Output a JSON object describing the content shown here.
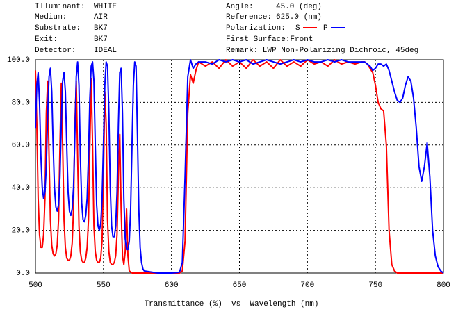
{
  "chart_data": {
    "type": "line",
    "header_left": [
      {
        "label": "Illuminant:",
        "value": "WHITE"
      },
      {
        "label": "Medium:",
        "value": "AIR"
      },
      {
        "label": "Substrate:",
        "value": "BK7"
      },
      {
        "label": "Exit:",
        "value": "BK7"
      },
      {
        "label": "Detector:",
        "value": "IDEAL"
      }
    ],
    "header_right": [
      {
        "label": "Angle:",
        "value": "45.0 (deg)"
      },
      {
        "label": "Reference:",
        "value": "625.0 (nm)"
      }
    ],
    "polarization_label": "Polarization:",
    "first_surface": "First Surface:Front",
    "remark": "Remark: LWP Non-Polarizing Dichroic, 45deg",
    "xlabel": "Transmittance (%)  vs  Wavelength (nm)",
    "xlim": [
      500,
      800
    ],
    "ylim": [
      0,
      100
    ],
    "xticks": [
      500,
      550,
      600,
      650,
      700,
      750,
      800
    ],
    "yticks": [
      {
        "value": 0,
        "label": "0.0"
      },
      {
        "value": 20,
        "label": "20.0"
      },
      {
        "value": 40,
        "label": "40.0"
      },
      {
        "value": 60,
        "label": "60.0"
      },
      {
        "value": 80,
        "label": "80.0"
      },
      {
        "value": 100,
        "label": "100.0"
      }
    ],
    "grid": true,
    "x": [
      500,
      501,
      502,
      503,
      504,
      505,
      506,
      507,
      508,
      509,
      510,
      511,
      512,
      513,
      514,
      515,
      516,
      517,
      518,
      519,
      520,
      521,
      522,
      523,
      524,
      525,
      526,
      527,
      528,
      529,
      530,
      531,
      532,
      533,
      534,
      535,
      536,
      537,
      538,
      539,
      540,
      541,
      542,
      543,
      544,
      545,
      546,
      547,
      548,
      549,
      550,
      551,
      552,
      553,
      554,
      555,
      556,
      557,
      558,
      559,
      560,
      561,
      562,
      563,
      564,
      565,
      566,
      567,
      568,
      569,
      570,
      571,
      572,
      573,
      574,
      575,
      576,
      577,
      578,
      579,
      580,
      585,
      590,
      595,
      600,
      605,
      606,
      608,
      610,
      612,
      614,
      616,
      618,
      620,
      625,
      630,
      635,
      640,
      645,
      650,
      655,
      660,
      665,
      670,
      675,
      680,
      685,
      690,
      695,
      700,
      705,
      710,
      715,
      720,
      725,
      730,
      735,
      740,
      742,
      744,
      746,
      748,
      750,
      752,
      754,
      756,
      758,
      760,
      762,
      764,
      766,
      768,
      770,
      772,
      774,
      776,
      778,
      780,
      782,
      784,
      786,
      788,
      790,
      792,
      794,
      796,
      798,
      800
    ],
    "series": [
      {
        "name": "S",
        "color": "#ff0000",
        "values": [
          95,
          70,
          35,
          18,
          12,
          12,
          18,
          35,
          75,
          90,
          55,
          25,
          13,
          9,
          8,
          9,
          13,
          25,
          60,
          89,
          60,
          25,
          12,
          7,
          6,
          6,
          8,
          14,
          30,
          70,
          90,
          55,
          22,
          10,
          6,
          5,
          5,
          7,
          12,
          25,
          60,
          91,
          60,
          22,
          10,
          6,
          5,
          5,
          7,
          15,
          45,
          85,
          70,
          25,
          10,
          5,
          4,
          4,
          5,
          8,
          18,
          45,
          65,
          30,
          8,
          4,
          10,
          30,
          8,
          1,
          0.5,
          0,
          0,
          0,
          0,
          0,
          0,
          0,
          0,
          0,
          0,
          0,
          0,
          0,
          0,
          0,
          0,
          1,
          15,
          75,
          93,
          89,
          95,
          99,
          97,
          99,
          96,
          100,
          97,
          99,
          96,
          100,
          97,
          99,
          96,
          100,
          97,
          99,
          97,
          100,
          98,
          99,
          97,
          100,
          98,
          99,
          98,
          99,
          99,
          98,
          96,
          94,
          88,
          80,
          77,
          76,
          60,
          20,
          4,
          1,
          0,
          0,
          0,
          0,
          0,
          0,
          0,
          0,
          0,
          0,
          0,
          0,
          0,
          0,
          0,
          0,
          0,
          0
        ]
      },
      {
        "name": "P",
        "color": "#0000ff",
        "values": [
          68,
          88,
          94,
          80,
          55,
          40,
          35,
          38,
          50,
          75,
          92,
          96,
          85,
          60,
          40,
          31,
          29,
          32,
          45,
          70,
          90,
          94,
          85,
          60,
          38,
          29,
          27,
          30,
          40,
          65,
          92,
          99,
          88,
          55,
          33,
          25,
          24,
          27,
          35,
          55,
          82,
          97,
          99,
          90,
          60,
          32,
          22,
          20,
          23,
          35,
          60,
          88,
          99,
          97,
          75,
          40,
          22,
          17,
          17,
          22,
          38,
          70,
          94,
          96,
          75,
          35,
          16,
          11,
          11,
          15,
          30,
          60,
          88,
          99,
          97,
          65,
          30,
          12,
          5,
          2,
          1,
          0.5,
          0,
          0,
          0,
          0.3,
          0.5,
          5,
          45,
          92,
          100,
          96,
          98,
          99,
          99,
          98,
          100,
          99,
          100,
          99,
          100,
          98,
          99,
          100,
          99,
          98,
          99,
          100,
          99,
          100,
          99,
          99,
          100,
          99,
          100,
          99,
          99,
          99,
          99,
          98,
          97,
          95,
          96,
          98,
          98,
          97,
          98,
          95,
          90,
          85,
          81,
          80,
          82,
          88,
          92,
          90,
          82,
          68,
          50,
          43,
          50,
          61,
          45,
          20,
          8,
          3,
          1,
          0
        ]
      }
    ]
  }
}
